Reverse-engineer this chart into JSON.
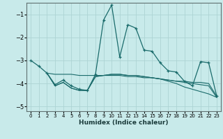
{
  "xlabel": "Humidex (Indice chaleur)",
  "background_color": "#c8eaea",
  "grid_color": "#add4d4",
  "line_color": "#1a6b6b",
  "xlim": [
    -0.5,
    23.5
  ],
  "ylim": [
    -5.2,
    -0.5
  ],
  "yticks": [
    -5,
    -4,
    -3,
    -2,
    -1
  ],
  "xticks": [
    0,
    1,
    2,
    3,
    4,
    5,
    6,
    7,
    8,
    9,
    10,
    11,
    12,
    13,
    14,
    15,
    16,
    17,
    18,
    19,
    20,
    21,
    22,
    23
  ],
  "s1_x": [
    0,
    1,
    2,
    3,
    4,
    5,
    6,
    7,
    8,
    9,
    10,
    11,
    12,
    13,
    14,
    15,
    16,
    17,
    18,
    19,
    20,
    21,
    22,
    23
  ],
  "s1_y": [
    -3.0,
    -3.25,
    -3.55,
    -4.05,
    -3.85,
    -4.1,
    -4.25,
    -4.3,
    -3.6,
    -1.25,
    -0.6,
    -2.85,
    -1.45,
    -1.6,
    -2.55,
    -2.6,
    -3.1,
    -3.45,
    -3.5,
    -3.9,
    -4.1,
    -3.05,
    -3.1,
    -4.55
  ],
  "s2_x": [
    2,
    3,
    4,
    5,
    6,
    7,
    8,
    9,
    10,
    11,
    12,
    13,
    14,
    15,
    16,
    17,
    18,
    19,
    20,
    21,
    22,
    23
  ],
  "s2_y": [
    -3.55,
    -3.6,
    -3.6,
    -3.6,
    -3.65,
    -3.65,
    -3.65,
    -3.65,
    -3.65,
    -3.65,
    -3.7,
    -3.7,
    -3.75,
    -3.75,
    -3.8,
    -3.85,
    -3.9,
    -3.9,
    -3.95,
    -3.95,
    -4.0,
    -4.55
  ],
  "s3_x": [
    2,
    3,
    4,
    5,
    6,
    7,
    8,
    9,
    10,
    11,
    12,
    13,
    14,
    15,
    16,
    17,
    18,
    19,
    20,
    21,
    22,
    23
  ],
  "s3_y": [
    -3.55,
    -4.1,
    -3.95,
    -4.2,
    -4.3,
    -4.3,
    -3.7,
    -3.65,
    -3.6,
    -3.6,
    -3.65,
    -3.65,
    -3.7,
    -3.75,
    -3.8,
    -3.85,
    -3.9,
    -3.95,
    -4.0,
    -4.05,
    -4.1,
    -4.6
  ],
  "s4_x": [
    2,
    3,
    4,
    5,
    6,
    7,
    8,
    9,
    10,
    11,
    12,
    13,
    14,
    15,
    16,
    17,
    18,
    19,
    20,
    21,
    22,
    23
  ],
  "s4_y": [
    -3.55,
    -4.1,
    -3.95,
    -4.2,
    -4.3,
    -4.3,
    -3.7,
    -3.65,
    -3.6,
    -3.6,
    -3.65,
    -3.65,
    -3.7,
    -3.75,
    -3.8,
    -3.9,
    -4.0,
    -4.15,
    -4.25,
    -4.35,
    -4.45,
    -4.6
  ]
}
